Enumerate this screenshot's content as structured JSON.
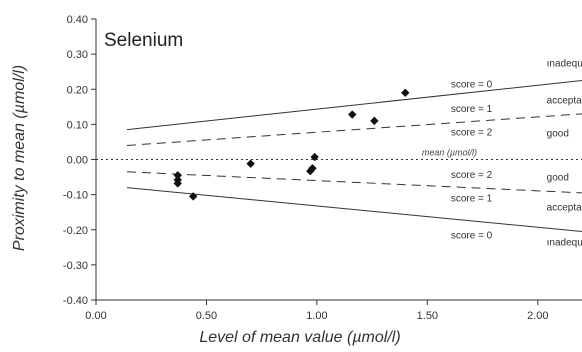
{
  "chart_data": {
    "type": "scatter",
    "title": "Selenium",
    "xlabel": "Level of mean value (µmol/l)",
    "ylabel": "Proximity to mean (µmol/l)",
    "xlim": [
      0,
      2.2
    ],
    "ylim": [
      -0.4,
      0.4
    ],
    "x_ticks": [
      {
        "value": 0.0,
        "label": "0.00"
      },
      {
        "value": 0.5,
        "label": "0.50"
      },
      {
        "value": 1.0,
        "label": "1.00"
      },
      {
        "value": 1.5,
        "label": "1.50"
      },
      {
        "value": 2.0,
        "label": "2.00"
      }
    ],
    "y_ticks": [
      {
        "value": 0.4,
        "label": "0.40"
      },
      {
        "value": 0.3,
        "label": "0.30"
      },
      {
        "value": 0.2,
        "label": "0.20"
      },
      {
        "value": 0.1,
        "label": "0.10"
      },
      {
        "value": 0.0,
        "label": "0.00"
      },
      {
        "value": -0.1,
        "label": "-0.10"
      },
      {
        "value": -0.2,
        "label": "-0.20"
      },
      {
        "value": -0.3,
        "label": "-0.30"
      },
      {
        "value": -0.4,
        "label": "-0.40"
      }
    ],
    "points": [
      {
        "x": 0.37,
        "y": -0.045
      },
      {
        "x": 0.37,
        "y": -0.058
      },
      {
        "x": 0.37,
        "y": -0.068
      },
      {
        "x": 0.44,
        "y": -0.105
      },
      {
        "x": 0.7,
        "y": -0.012
      },
      {
        "x": 0.97,
        "y": -0.033
      },
      {
        "x": 0.98,
        "y": -0.025
      },
      {
        "x": 0.99,
        "y": 0.007
      },
      {
        "x": 1.16,
        "y": 0.128
      },
      {
        "x": 1.26,
        "y": 0.11
      },
      {
        "x": 1.4,
        "y": 0.19
      }
    ],
    "reference_lines": [
      {
        "style": "solid",
        "x": [
          0.14,
          2.2
        ],
        "y": [
          0.085,
          0.225
        ]
      },
      {
        "style": "dashed",
        "x": [
          0.14,
          2.2
        ],
        "y": [
          0.04,
          0.13
        ]
      },
      {
        "style": "dotted",
        "x": [
          0.0,
          2.2
        ],
        "y": [
          0.0,
          0.0
        ]
      },
      {
        "style": "dashed",
        "x": [
          0.14,
          2.2
        ],
        "y": [
          -0.035,
          -0.095
        ]
      },
      {
        "style": "solid",
        "x": [
          0.14,
          2.2
        ],
        "y": [
          -0.08,
          -0.205
        ]
      }
    ],
    "score_labels": [
      {
        "text": "score = 0",
        "x": 1.7,
        "y": 0.205
      },
      {
        "text": "score = 1",
        "x": 1.7,
        "y": 0.135
      },
      {
        "text": "score = 2",
        "x": 1.7,
        "y": 0.068
      },
      {
        "text": "score = 2",
        "x": 1.7,
        "y": -0.053
      },
      {
        "text": "score = 1",
        "x": 1.7,
        "y": -0.12
      },
      {
        "text": "score = 0",
        "x": 1.7,
        "y": -0.225
      }
    ],
    "zone_labels": [
      {
        "text": "ınadequate",
        "x": 2.04,
        "y": 0.265
      },
      {
        "text": "acceptable",
        "x": 2.04,
        "y": 0.16
      },
      {
        "text": "good",
        "x": 2.04,
        "y": 0.065
      },
      {
        "text": "good",
        "x": 2.04,
        "y": -0.06
      },
      {
        "text": "acceptable",
        "x": 2.04,
        "y": -0.145
      },
      {
        "text": "ınadequate",
        "x": 2.04,
        "y": -0.245
      }
    ],
    "mean_label": {
      "text": "mean (µmol/l)",
      "x": 1.6,
      "y": 0.012
    }
  }
}
